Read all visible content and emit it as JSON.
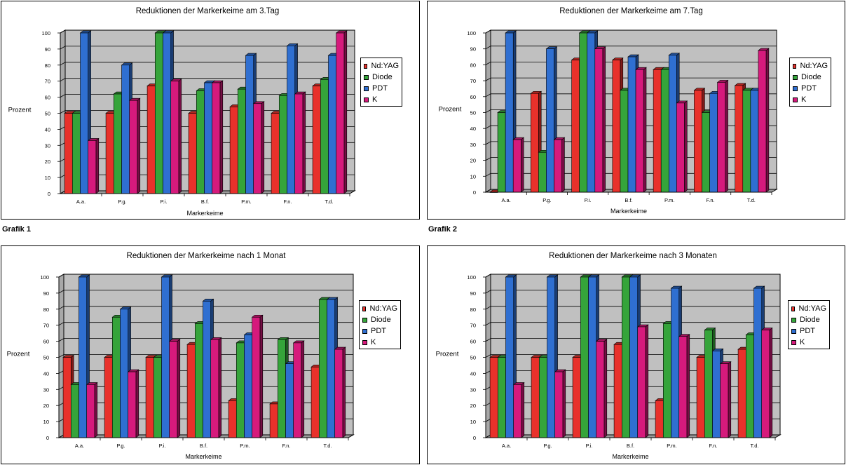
{
  "grafik_labels": [
    "Grafik 1",
    "Grafik 2"
  ],
  "legend": {
    "series": [
      "Nd:YAG",
      "Diode",
      "PDT",
      "K"
    ],
    "colors": {
      "Nd:YAG": "#e8312b",
      "Diode": "#35a43a",
      "PDT": "#2f6fd1",
      "K": "#d61a7c"
    }
  },
  "chart_data": [
    {
      "type": "bar",
      "title": "Reduktionen der Markerkeime am 3.Tag",
      "xlabel": "Markerkeime",
      "ylabel": "Prozent",
      "ylim": [
        0,
        100
      ],
      "yticks": [
        0,
        10,
        20,
        30,
        40,
        50,
        60,
        70,
        80,
        90,
        100
      ],
      "categories": [
        "A.a.",
        "P.g.",
        "P.i.",
        "B.f.",
        "P.m.",
        "F.n.",
        "T.d."
      ],
      "series": [
        {
          "name": "Nd:YAG",
          "values": [
            50,
            50,
            67,
            50,
            54,
            50,
            67
          ]
        },
        {
          "name": "Diode",
          "values": [
            50,
            62,
            100,
            64,
            65,
            61,
            71
          ]
        },
        {
          "name": "PDT",
          "values": [
            100,
            80,
            100,
            69,
            86,
            92,
            86
          ]
        },
        {
          "name": "K",
          "values": [
            33,
            58,
            70,
            69,
            56,
            62,
            100
          ]
        }
      ]
    },
    {
      "type": "bar",
      "title": "Reduktionen der Markerkeime am 7.Tag",
      "xlabel": "Markerkeime",
      "ylabel": "Prozent",
      "ylim": [
        0,
        100
      ],
      "yticks": [
        0,
        10,
        20,
        30,
        40,
        50,
        60,
        70,
        80,
        90,
        100
      ],
      "categories": [
        "A.a.",
        "P.g.",
        "P.i.",
        "B.f.",
        "P.m.",
        "F.n.",
        "T.d."
      ],
      "series": [
        {
          "name": "Nd:YAG",
          "values": [
            0,
            62,
            83,
            83,
            77,
            64,
            67
          ]
        },
        {
          "name": "Diode",
          "values": [
            50,
            25,
            100,
            64,
            77,
            50,
            64
          ]
        },
        {
          "name": "PDT",
          "values": [
            100,
            90,
            100,
            85,
            86,
            62,
            64
          ]
        },
        {
          "name": "K",
          "values": [
            33,
            33,
            90,
            77,
            56,
            69,
            89
          ]
        }
      ]
    },
    {
      "type": "bar",
      "title": "Reduktionen der Markerkeime nach 1 Monat",
      "xlabel": "Markerkeime",
      "ylabel": "Prozent",
      "ylim": [
        0,
        100
      ],
      "yticks": [
        0,
        10,
        20,
        30,
        40,
        50,
        60,
        70,
        80,
        90,
        100
      ],
      "categories": [
        "A.a.",
        "P.g.",
        "P.i.",
        "B.f.",
        "P.m.",
        "F.n.",
        "T.d."
      ],
      "series": [
        {
          "name": "Nd:YAG",
          "values": [
            50,
            50,
            50,
            58,
            23,
            21,
            44
          ]
        },
        {
          "name": "Diode",
          "values": [
            33,
            75,
            50,
            71,
            59,
            61,
            86
          ]
        },
        {
          "name": "PDT",
          "values": [
            100,
            80,
            100,
            85,
            64,
            46,
            86
          ]
        },
        {
          "name": "K",
          "values": [
            33,
            41,
            60,
            61,
            75,
            59,
            55
          ]
        }
      ]
    },
    {
      "type": "bar",
      "title": "Reduktionen der Markerkeime nach 3 Monaten",
      "xlabel": "Markerkeime",
      "ylabel": "Prozent",
      "ylim": [
        0,
        100
      ],
      "yticks": [
        0,
        10,
        20,
        30,
        40,
        50,
        60,
        70,
        80,
        90,
        100
      ],
      "categories": [
        "A.a.",
        "P.g.",
        "P.i.",
        "B.f.",
        "P.m.",
        "F.n.",
        "T.d."
      ],
      "series": [
        {
          "name": "Nd:YAG",
          "values": [
            50,
            50,
            50,
            58,
            23,
            50,
            55
          ]
        },
        {
          "name": "Diode",
          "values": [
            50,
            50,
            100,
            100,
            71,
            67,
            64
          ]
        },
        {
          "name": "PDT",
          "values": [
            100,
            100,
            100,
            100,
            93,
            54,
            93
          ]
        },
        {
          "name": "K",
          "values": [
            33,
            41,
            60,
            69,
            63,
            46,
            67
          ]
        }
      ]
    }
  ]
}
